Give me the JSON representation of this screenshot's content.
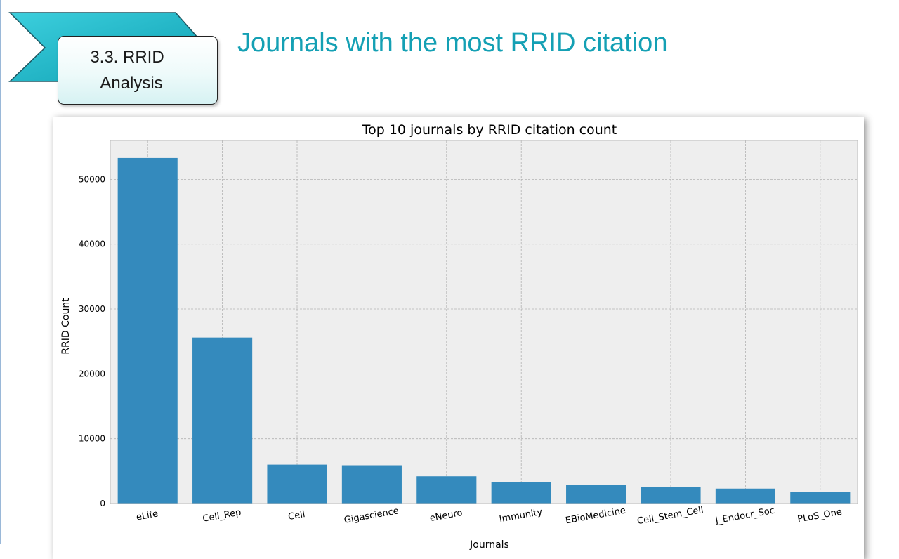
{
  "section_badge": {
    "line1": "3.3. RRID",
    "line2": "Analysis"
  },
  "slide_title": "Journals with the most RRID citation",
  "colors": {
    "title": "#14a0b4",
    "bar": "#348abd",
    "plot_bg": "#eeeeee",
    "badge_arrow": "#1fb7c9"
  },
  "icons": {
    "badge_arrow": "chevron-arrow-icon"
  },
  "chart_data": {
    "type": "bar",
    "title": "Top 10 journals by RRID citation count",
    "xlabel": "Journals",
    "ylabel": "RRID Count",
    "categories": [
      "eLife",
      "Cell_Rep",
      "Cell",
      "Gigascience",
      "eNeuro",
      "Immunity",
      "EBioMedicine",
      "Cell_Stem_Cell",
      "J_Endocr_Soc",
      "PLoS_One"
    ],
    "values": [
      53300,
      25600,
      6000,
      5900,
      4200,
      3300,
      2900,
      2600,
      2300,
      1800
    ],
    "ylim": [
      0,
      56000
    ],
    "yticks": [
      0,
      10000,
      20000,
      30000,
      40000,
      50000
    ],
    "grid": true,
    "legend": "none"
  }
}
